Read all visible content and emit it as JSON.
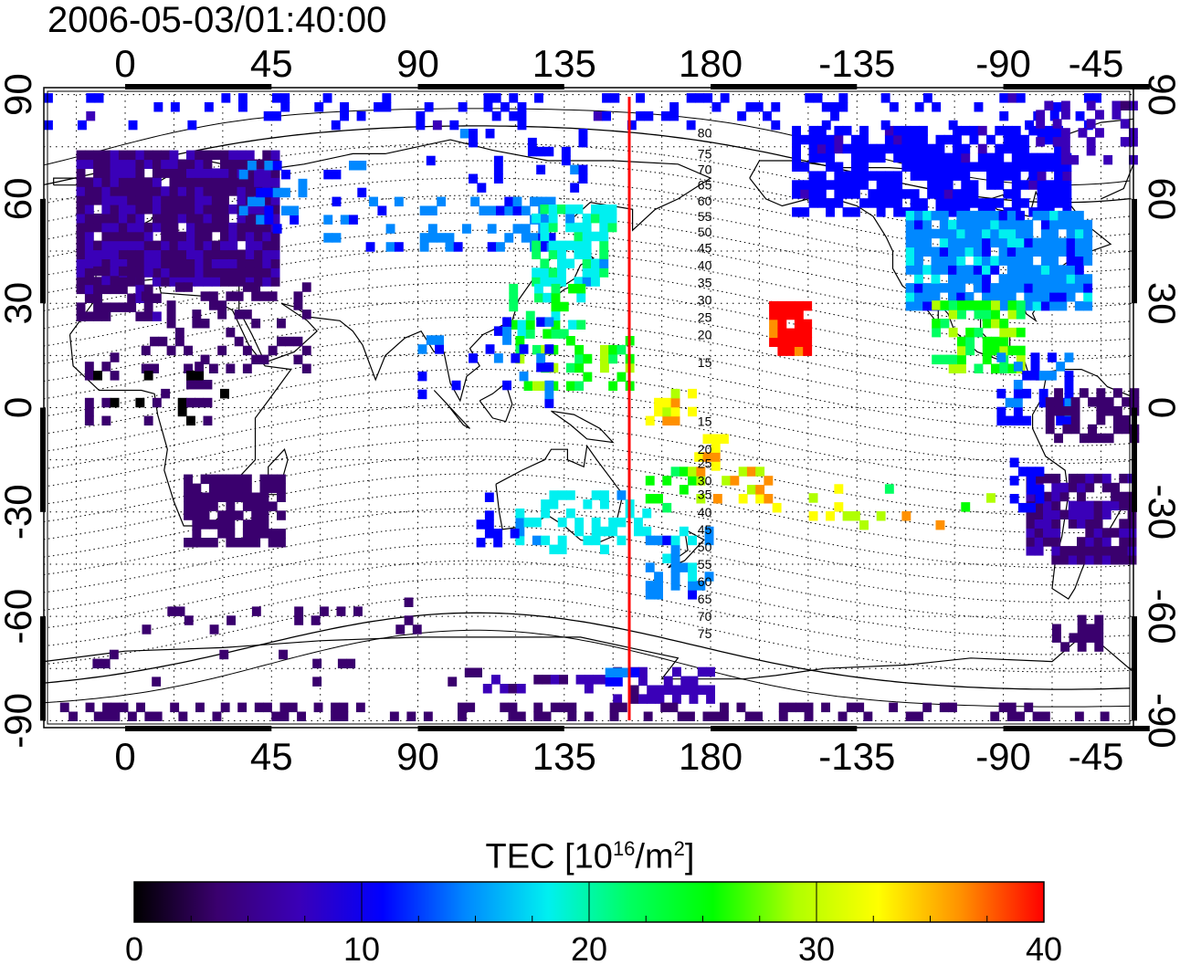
{
  "title": "2006-05-03/01:40:00",
  "colorbar": {
    "label_prefix": "TEC  [10",
    "label_exp1": "16",
    "label_mid": "/m",
    "label_exp2": "2",
    "label_suffix": "]",
    "ticks": [
      0,
      10,
      20,
      30,
      40
    ],
    "range": [
      0,
      40
    ],
    "colors": [
      "#000000",
      "#3a006e",
      "#3a00b8",
      "#0000ff",
      "#0088ff",
      "#00f0f0",
      "#00ff60",
      "#00ff00",
      "#b0ff00",
      "#ffff00",
      "#ff9000",
      "#ff0000"
    ]
  },
  "axes": {
    "x_top_ticks": [
      "0",
      "45",
      "90",
      "135",
      "180",
      "-135",
      "-90",
      "-45"
    ],
    "x_bottom_ticks": [
      "0",
      "45",
      "90",
      "135",
      "180",
      "-135",
      "-90",
      "-45"
    ],
    "y_left_ticks": [
      "90",
      "60",
      "30",
      "0",
      "-30",
      "-60",
      "-90"
    ],
    "y_right_ticks": [
      "90",
      "60",
      "30",
      "0",
      "-30",
      "-60",
      "-90"
    ],
    "lon_range": [
      -25,
      310
    ],
    "lat_range": [
      -92,
      92
    ],
    "grid": "dotted 15deg"
  },
  "magnetic_latitudes": [
    "80",
    "75",
    "70",
    "65",
    "60",
    "55",
    "50",
    "45",
    "40",
    "35",
    "30",
    "25",
    "20",
    "15",
    "15",
    "20",
    "25",
    "30",
    "35",
    "40",
    "45",
    "50",
    "55",
    "60",
    "65",
    "70",
    "75"
  ],
  "terminator_lon": 155
}
